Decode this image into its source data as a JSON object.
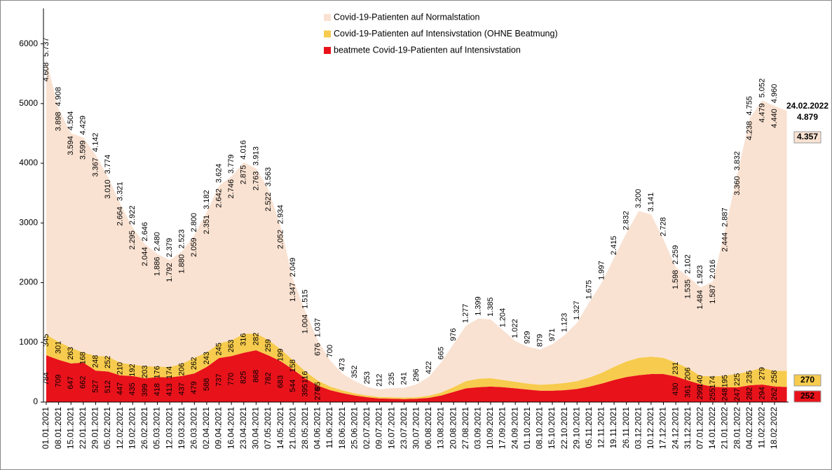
{
  "chart_data": {
    "type": "stacked-area",
    "categories": [
      "01.01.2021",
      "08.01.2021",
      "15.01.2021",
      "22.01.2021",
      "29.01.2021",
      "05.02.2021",
      "12.02.2021",
      "19.02.2021",
      "26.02.2021",
      "05.03.2021",
      "12.03.2021",
      "19.03.2021",
      "26.03.2021",
      "02.04.2021",
      "09.04.2021",
      "16.04.2021",
      "23.04.2021",
      "30.04.2021",
      "07.05.2021",
      "14.05.2021",
      "21.05.2021",
      "28.05.2021",
      "04.06.2021",
      "11.06.2021",
      "18.06.2021",
      "25.06.2021",
      "02.07.2021",
      "09.07.2021",
      "16.07.2021",
      "23.07.2021",
      "30.07.2021",
      "06.08.2021",
      "13.08.2021",
      "20.08.2021",
      "27.08.2021",
      "03.09.2021",
      "10.09.2021",
      "17.09.2021",
      "24.09.2021",
      "01.10.2021",
      "08.10.2021",
      "15.10.2021",
      "22.10.2021",
      "29.10.2021",
      "05.11.2021",
      "12.11.2021",
      "19.11.2021",
      "26.11.2021",
      "03.12.2021",
      "10.12.2021",
      "17.12.2021",
      "24.12.2021",
      "31.12.2021",
      "07.01.2022",
      "14.01.2022",
      "21.01.2022",
      "28.01.2022",
      "04.02.2022",
      "11.02.2022",
      "18.02.2022",
      null
    ],
    "series": [
      {
        "name": "Covid-19-Patienten auf Normalstation",
        "color": "#f9e2d2",
        "values": [
          4608,
          3898,
          3594,
          3599,
          3367,
          3010,
          2664,
          2295,
          2044,
          1886,
          1792,
          1880,
          2059,
          2351,
          2642,
          2746,
          2875,
          2763,
          2522,
          2052,
          1347,
          1004,
          676,
          440,
          278,
          207,
          143,
          127,
          155,
          166,
          216,
          317,
          505,
          726,
          927,
          1009,
          985,
          834,
          682,
          619,
          589,
          671,
          803,
          977,
          1265,
          1507,
          1825,
          2152,
          2460,
          2381,
          1988,
          1598,
          1535,
          1484,
          1587,
          2444,
          3360,
          4238,
          4479,
          4440,
          4357
        ],
        "value_labels": [
          "4.608",
          "3.898",
          "3.594",
          "3.599",
          "3.367",
          "3.010",
          "2.664",
          "2.295",
          "2.044",
          "1.886",
          "1.792",
          "1.880",
          "2.059",
          "2.351",
          "2.642",
          "2.746",
          "2.875",
          "2.763",
          "2.522",
          "2.052",
          "1.347",
          "1.004",
          "676",
          null,
          null,
          null,
          null,
          null,
          null,
          null,
          null,
          null,
          null,
          null,
          null,
          null,
          null,
          null,
          null,
          null,
          null,
          null,
          null,
          null,
          null,
          null,
          null,
          null,
          null,
          null,
          null,
          "1.598",
          "1.535",
          "1.484",
          "1.587",
          "2.444",
          "3.360",
          "4.238",
          "4.479",
          "4.440",
          "4.357"
        ]
      },
      {
        "name": "Covid-19-Patienten auf Intensivstation (OHNE Beatmung)",
        "color": "#f7cb4d",
        "values": [
          345,
          301,
          263,
          168,
          248,
          252,
          210,
          192,
          203,
          176,
          174,
          206,
          262,
          243,
          245,
          263,
          316,
          282,
          259,
          199,
          158,
          116,
          85,
          60,
          45,
          35,
          30,
          25,
          25,
          25,
          25,
          35,
          50,
          80,
          120,
          140,
          140,
          120,
          110,
          100,
          100,
          110,
          120,
          130,
          150,
          180,
          220,
          260,
          290,
          290,
          270,
          231,
          206,
          140,
          174,
          195,
          225,
          235,
          279,
          258,
          270
        ],
        "value_labels": [
          "345",
          "301",
          "263",
          "168",
          "248",
          "252",
          "210",
          "192",
          "203",
          "176",
          "174",
          "206",
          "262",
          "243",
          "245",
          "263",
          "316",
          "282",
          "259",
          "199",
          "158",
          "116",
          "85",
          null,
          null,
          null,
          null,
          null,
          null,
          null,
          null,
          null,
          null,
          null,
          null,
          null,
          null,
          null,
          null,
          null,
          null,
          null,
          null,
          null,
          null,
          null,
          null,
          null,
          null,
          null,
          null,
          "231",
          "206",
          "140",
          "174",
          "195",
          "225",
          "235",
          "279",
          "258",
          "270"
        ]
      },
      {
        "name": "beatmete Covid-19-Patienten auf Intensivstation",
        "color": "#e8121b",
        "values": [
          784,
          709,
          647,
          662,
          527,
          512,
          447,
          435,
          399,
          418,
          413,
          437,
          479,
          588,
          737,
          770,
          825,
          868,
          782,
          683,
          544,
          395,
          276,
          200,
          150,
          110,
          80,
          60,
          55,
          50,
          55,
          70,
          110,
          170,
          230,
          250,
          260,
          250,
          230,
          210,
          190,
          190,
          200,
          220,
          260,
          310,
          370,
          420,
          450,
          470,
          470,
          430,
          361,
          299,
          255,
          248,
          247,
          282,
          294,
          262,
          252
        ],
        "value_labels": [
          "784",
          "709",
          "647",
          "662",
          "527",
          "512",
          "447",
          "435",
          "399",
          "418",
          "413",
          "437",
          "479",
          "588",
          "737",
          "770",
          "825",
          "868",
          "782",
          "683",
          "544",
          "395",
          "276",
          null,
          null,
          null,
          null,
          null,
          null,
          null,
          null,
          null,
          null,
          null,
          null,
          null,
          null,
          null,
          null,
          null,
          null,
          null,
          null,
          null,
          null,
          null,
          null,
          null,
          null,
          null,
          null,
          "430",
          "361",
          "299",
          "255",
          "248",
          "247",
          "282",
          "294",
          "262",
          "252"
        ]
      }
    ],
    "totals": {
      "values": [
        5737,
        4908,
        4504,
        4429,
        4142,
        3774,
        3321,
        2922,
        2646,
        2480,
        2379,
        2523,
        2800,
        3182,
        3624,
        3779,
        4016,
        3913,
        3563,
        2934,
        2049,
        1515,
        1037,
        700,
        473,
        352,
        253,
        212,
        235,
        241,
        296,
        422,
        665,
        976,
        1277,
        1399,
        1385,
        1204,
        1022,
        929,
        879,
        971,
        1123,
        1327,
        1675,
        1997,
        2415,
        2832,
        3200,
        3141,
        2728,
        2259,
        2102,
        1923,
        2016,
        2887,
        3832,
        4755,
        5052,
        4960,
        4879
      ],
      "value_labels": [
        "5.737",
        "4.908",
        "4.504",
        "4.429",
        "4.142",
        "3.774",
        "3.321",
        "2.922",
        "2.646",
        "2.480",
        "2.379",
        "2.523",
        "2.800",
        "3.182",
        "3.624",
        "3.779",
        "4.016",
        "3.913",
        "3.563",
        "2.934",
        "2.049",
        "1.515",
        "1.037",
        "700",
        "473",
        "352",
        "253",
        "212",
        "235",
        "241",
        "296",
        "422",
        "665",
        "976",
        "1.277",
        "1.399",
        "1.385",
        "1.204",
        "1.022",
        "929",
        "879",
        "971",
        "1.123",
        "1.327",
        "1.675",
        "1.997",
        "2.415",
        "2.832",
        "3.200",
        "3.141",
        "2.728",
        "2.259",
        "2.102",
        "1.923",
        "2.016",
        "2.887",
        "3.832",
        "4.755",
        "5.052",
        "4.960",
        "4.879"
      ]
    },
    "annotations": [
      {
        "text": "24.02.2022"
      }
    ],
    "ylim": [
      0,
      6500
    ],
    "yticks": [
      0,
      1000,
      2000,
      3000,
      4000,
      5000,
      6000
    ],
    "grid": false
  }
}
